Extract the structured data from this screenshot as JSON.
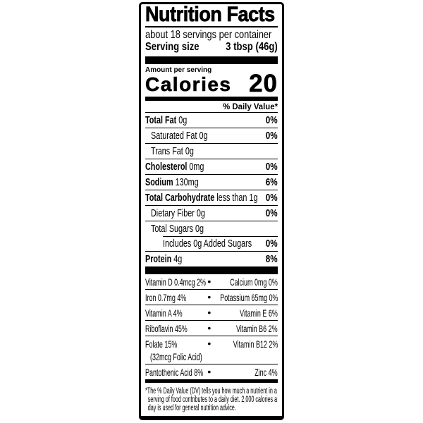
{
  "label": {
    "title": "Nutrition Facts",
    "servings_per_container": "about 18 servings per container",
    "serving_size_label": "Serving size",
    "serving_size_value": "3 tbsp (46g)",
    "amount_per_serving": "Amount per serving",
    "calories_label": "Calories",
    "calories_value": "20",
    "daily_value_header": "% Daily Value*",
    "nutrient_rows": [
      {
        "name": "Total Fat",
        "amount": "0g",
        "pct": "0%"
      },
      {
        "name": "Saturated Fat",
        "amount": "0g",
        "pct": "0%"
      },
      {
        "name": "Trans Fat",
        "amount": "0g",
        "pct": ""
      },
      {
        "name": "Cholesterol",
        "amount": "0mg",
        "pct": "0%"
      },
      {
        "name": "Sodium",
        "amount": "130mg",
        "pct": "6%"
      },
      {
        "name": "Total Carbohydrate",
        "amount": "less than 1g",
        "pct": "0%"
      },
      {
        "name": "Dietary Fiber",
        "amount": "0g",
        "pct": "0%"
      },
      {
        "name": "Total Sugars",
        "amount": "0g",
        "pct": ""
      },
      {
        "name": "Includes 0g Added Sugars",
        "amount": "",
        "pct": "0%"
      },
      {
        "name": "Protein",
        "amount": "4g",
        "pct": "8%"
      }
    ],
    "bullet": "•",
    "micronutrient_rows": [
      {
        "left": "Vitamin D 0.4mcg 2%",
        "right": "Calcium 0mg 0%"
      },
      {
        "left": "Iron 0.7mg 4%",
        "right": "Potassium 65mg 0%"
      },
      {
        "left": "Vitamin A  4%",
        "right": "Vitamin E 6%"
      },
      {
        "left": "Riboflavin 45%",
        "right": "Vitamin B6 2%"
      },
      {
        "left": "Folate 15%",
        "left2": "(32mcg Folic Acid)",
        "right": "Vitamin B12 2%"
      },
      {
        "left": "Pantothenic Acid 8%",
        "right": "Zinc 4%"
      }
    ],
    "footnote": "*The % Daily Value (DV) tells you how much a nutrient in a serving of food contributes to a daily diet. 2,000 calories a day is used for general nutrition advice."
  }
}
